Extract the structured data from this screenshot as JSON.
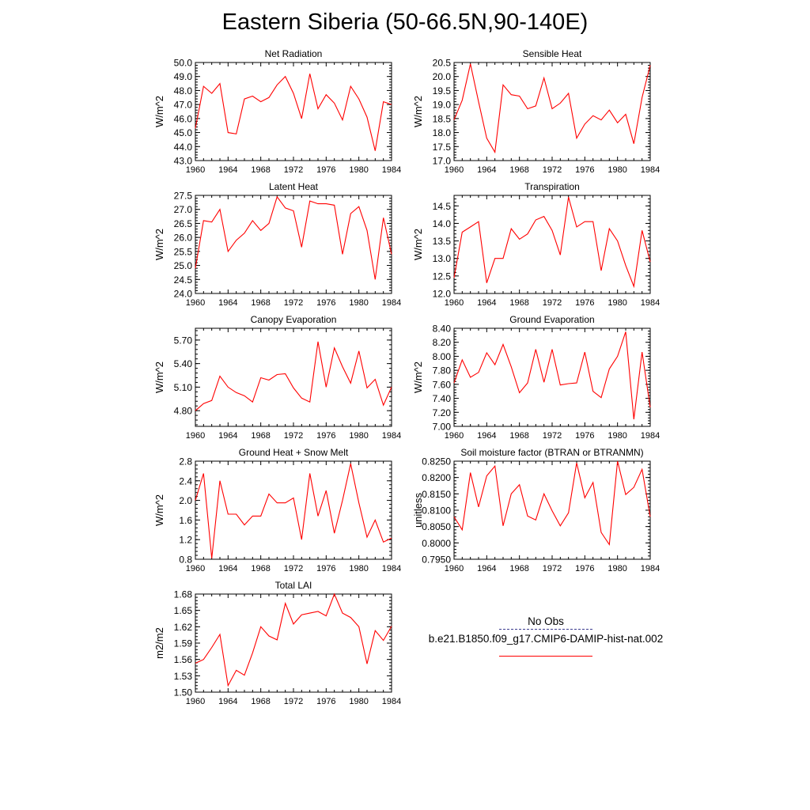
{
  "title": "Eastern Siberia (50-66.5N,90-140E)",
  "legend": {
    "obs_label": "No Obs",
    "obs_color": "#3b3b8f",
    "model_label": "b.e21.B1850.f09_g17.CMIP6-DAMIP-hist-nat.002",
    "model_color": "#ff0000"
  },
  "chart_data": [
    {
      "type": "line",
      "title": "Net Radiation",
      "ylabel": "W/m^2",
      "x": [
        1960,
        1961,
        1962,
        1963,
        1964,
        1965,
        1966,
        1967,
        1968,
        1969,
        1970,
        1971,
        1972,
        1973,
        1974,
        1975,
        1976,
        1977,
        1978,
        1979,
        1980,
        1981,
        1982,
        1983,
        1984
      ],
      "xticks": [
        1960,
        1964,
        1968,
        1972,
        1976,
        1980,
        1984
      ],
      "xlim": [
        1960,
        1984
      ],
      "ylim": [
        43.0,
        50.0
      ],
      "yticks": [
        43.0,
        44.0,
        45.0,
        46.0,
        47.0,
        48.0,
        49.0,
        50.0
      ],
      "ydecimals": 1,
      "series": [
        {
          "values": [
            45.3,
            48.3,
            47.8,
            48.5,
            45.0,
            44.9,
            47.4,
            47.6,
            47.2,
            47.5,
            48.4,
            49.0,
            47.8,
            46.0,
            49.2,
            46.7,
            47.7,
            47.1,
            45.9,
            48.3,
            47.4,
            46.1,
            43.7,
            47.2,
            47.0
          ],
          "color": "#ff0000"
        }
      ]
    },
    {
      "type": "line",
      "title": "Sensible Heat",
      "ylabel": "W/m^2",
      "x": [
        1960,
        1961,
        1962,
        1963,
        1964,
        1965,
        1966,
        1967,
        1968,
        1969,
        1970,
        1971,
        1972,
        1973,
        1974,
        1975,
        1976,
        1977,
        1978,
        1979,
        1980,
        1981,
        1982,
        1983,
        1984
      ],
      "xticks": [
        1960,
        1964,
        1968,
        1972,
        1976,
        1980,
        1984
      ],
      "xlim": [
        1960,
        1984
      ],
      "ylim": [
        17.0,
        20.5
      ],
      "yticks": [
        17.0,
        17.5,
        18.0,
        18.5,
        19.0,
        19.5,
        20.0,
        20.5
      ],
      "ydecimals": 1,
      "series": [
        {
          "values": [
            18.45,
            19.15,
            20.45,
            19.1,
            17.8,
            17.3,
            19.7,
            19.35,
            19.3,
            18.85,
            18.95,
            19.95,
            18.85,
            19.05,
            19.4,
            17.8,
            18.3,
            18.6,
            18.45,
            18.8,
            18.35,
            18.65,
            17.6,
            19.25,
            20.4
          ],
          "color": "#ff0000"
        }
      ]
    },
    {
      "type": "line",
      "title": "Latent Heat",
      "ylabel": "W/m^2",
      "x": [
        1960,
        1961,
        1962,
        1963,
        1964,
        1965,
        1966,
        1967,
        1968,
        1969,
        1970,
        1971,
        1972,
        1973,
        1974,
        1975,
        1976,
        1977,
        1978,
        1979,
        1980,
        1981,
        1982,
        1983,
        1984
      ],
      "xticks": [
        1960,
        1964,
        1968,
        1972,
        1976,
        1980,
        1984
      ],
      "xlim": [
        1960,
        1984
      ],
      "ylim": [
        24.0,
        27.5
      ],
      "yticks": [
        24.0,
        24.5,
        25.0,
        25.5,
        26.0,
        26.5,
        27.0,
        27.5
      ],
      "ydecimals": 1,
      "series": [
        {
          "values": [
            24.9,
            26.6,
            26.55,
            27.0,
            25.5,
            25.9,
            26.15,
            26.6,
            26.25,
            26.5,
            27.45,
            27.05,
            26.95,
            25.65,
            27.3,
            27.2,
            27.2,
            27.15,
            25.4,
            26.85,
            27.1,
            26.25,
            24.5,
            26.7,
            25.4
          ],
          "color": "#ff0000"
        }
      ]
    },
    {
      "type": "line",
      "title": "Transpiration",
      "ylabel": "W/m^2",
      "x": [
        1960,
        1961,
        1962,
        1963,
        1964,
        1965,
        1966,
        1967,
        1968,
        1969,
        1970,
        1971,
        1972,
        1973,
        1974,
        1975,
        1976,
        1977,
        1978,
        1979,
        1980,
        1981,
        1982,
        1983,
        1984
      ],
      "xticks": [
        1960,
        1964,
        1968,
        1972,
        1976,
        1980,
        1984
      ],
      "xlim": [
        1960,
        1984
      ],
      "ylim": [
        12.0,
        14.8
      ],
      "yticks": [
        12.0,
        12.5,
        13.0,
        13.5,
        14.0,
        14.5
      ],
      "ydecimals": 1,
      "series": [
        {
          "values": [
            12.45,
            13.75,
            13.9,
            14.05,
            12.3,
            13.0,
            13.0,
            13.85,
            13.55,
            13.7,
            14.1,
            14.2,
            13.8,
            13.1,
            14.75,
            13.9,
            14.05,
            14.05,
            12.65,
            13.85,
            13.5,
            12.8,
            12.2,
            13.8,
            12.9
          ],
          "color": "#ff0000"
        }
      ]
    },
    {
      "type": "line",
      "title": "Canopy Evaporation",
      "ylabel": "W/m^2",
      "x": [
        1960,
        1961,
        1962,
        1963,
        1964,
        1965,
        1966,
        1967,
        1968,
        1969,
        1970,
        1971,
        1972,
        1973,
        1974,
        1975,
        1976,
        1977,
        1978,
        1979,
        1980,
        1981,
        1982,
        1983,
        1984
      ],
      "xticks": [
        1960,
        1964,
        1968,
        1972,
        1976,
        1980,
        1984
      ],
      "xlim": [
        1960,
        1984
      ],
      "ylim": [
        4.6,
        5.85
      ],
      "yticks": [
        4.8,
        5.1,
        5.4,
        5.7
      ],
      "ydecimals": 2,
      "series": [
        {
          "values": [
            4.8,
            4.89,
            4.93,
            5.24,
            5.1,
            5.03,
            4.99,
            4.91,
            5.22,
            5.19,
            5.26,
            5.27,
            5.09,
            4.96,
            4.91,
            5.68,
            5.1,
            5.6,
            5.36,
            5.15,
            5.56,
            5.09,
            5.2,
            4.87,
            5.1
          ],
          "color": "#ff0000"
        }
      ]
    },
    {
      "type": "line",
      "title": "Ground Evaporation",
      "ylabel": "W/m^2",
      "x": [
        1960,
        1961,
        1962,
        1963,
        1964,
        1965,
        1966,
        1967,
        1968,
        1969,
        1970,
        1971,
        1972,
        1973,
        1974,
        1975,
        1976,
        1977,
        1978,
        1979,
        1980,
        1981,
        1982,
        1983,
        1984
      ],
      "xticks": [
        1960,
        1964,
        1968,
        1972,
        1976,
        1980,
        1984
      ],
      "xlim": [
        1960,
        1984
      ],
      "ylim": [
        7.0,
        8.4
      ],
      "yticks": [
        7.0,
        7.2,
        7.4,
        7.6,
        7.8,
        8.0,
        8.2,
        8.4
      ],
      "ydecimals": 2,
      "series": [
        {
          "values": [
            7.62,
            7.95,
            7.7,
            7.77,
            8.05,
            7.88,
            8.17,
            7.85,
            7.48,
            7.62,
            8.1,
            7.63,
            8.1,
            7.59,
            7.61,
            7.62,
            8.06,
            7.5,
            7.41,
            7.82,
            8.0,
            8.35,
            7.1,
            8.06,
            7.27
          ],
          "color": "#ff0000"
        }
      ]
    },
    {
      "type": "line",
      "title": "Ground Heat + Snow Melt",
      "ylabel": "W/m^2",
      "x": [
        1960,
        1961,
        1962,
        1963,
        1964,
        1965,
        1966,
        1967,
        1968,
        1969,
        1970,
        1971,
        1972,
        1973,
        1974,
        1975,
        1976,
        1977,
        1978,
        1979,
        1980,
        1981,
        1982,
        1983,
        1984
      ],
      "xticks": [
        1960,
        1964,
        1968,
        1972,
        1976,
        1980,
        1984
      ],
      "xlim": [
        1960,
        1984
      ],
      "ylim": [
        0.8,
        2.8
      ],
      "yticks": [
        0.8,
        1.2,
        1.6,
        2.0,
        2.4,
        2.8
      ],
      "ydecimals": 1,
      "series": [
        {
          "values": [
            2.0,
            2.55,
            0.82,
            2.4,
            1.72,
            1.72,
            1.5,
            1.68,
            1.68,
            2.13,
            1.95,
            1.95,
            2.05,
            1.2,
            2.55,
            1.68,
            2.2,
            1.33,
            2.0,
            2.75,
            1.95,
            1.25,
            1.6,
            1.15,
            1.23
          ],
          "color": "#ff0000"
        }
      ]
    },
    {
      "type": "line",
      "title": "Soil moisture factor (BTRAN or BTRANMN)",
      "ylabel": "unitless",
      "x": [
        1960,
        1961,
        1962,
        1963,
        1964,
        1965,
        1966,
        1967,
        1968,
        1969,
        1970,
        1971,
        1972,
        1973,
        1974,
        1975,
        1976,
        1977,
        1978,
        1979,
        1980,
        1981,
        1982,
        1983,
        1984
      ],
      "xticks": [
        1960,
        1964,
        1968,
        1972,
        1976,
        1980,
        1984
      ],
      "xlim": [
        1960,
        1984
      ],
      "ylim": [
        0.795,
        0.825
      ],
      "yticks": [
        0.795,
        0.8,
        0.805,
        0.81,
        0.815,
        0.82,
        0.825
      ],
      "ydecimals": 4,
      "series": [
        {
          "values": [
            0.808,
            0.804,
            0.8215,
            0.811,
            0.8205,
            0.8235,
            0.8052,
            0.815,
            0.8178,
            0.8082,
            0.807,
            0.815,
            0.8098,
            0.8052,
            0.8092,
            0.8245,
            0.8138,
            0.8185,
            0.8032,
            0.7995,
            0.825,
            0.8148,
            0.817,
            0.8225,
            0.808
          ],
          "color": "#ff0000"
        }
      ]
    },
    {
      "type": "line",
      "title": "Total LAI",
      "ylabel": "m2/m2",
      "x": [
        1960,
        1961,
        1962,
        1963,
        1964,
        1965,
        1966,
        1967,
        1968,
        1969,
        1970,
        1971,
        1972,
        1973,
        1974,
        1975,
        1976,
        1977,
        1978,
        1979,
        1980,
        1981,
        1982,
        1983,
        1984
      ],
      "xticks": [
        1960,
        1964,
        1968,
        1972,
        1976,
        1980,
        1984
      ],
      "xlim": [
        1960,
        1984
      ],
      "ylim": [
        1.5,
        1.68
      ],
      "yticks": [
        1.5,
        1.53,
        1.56,
        1.59,
        1.62,
        1.65,
        1.68
      ],
      "ydecimals": 2,
      "series": [
        {
          "values": [
            1.553,
            1.56,
            1.582,
            1.606,
            1.512,
            1.54,
            1.531,
            1.572,
            1.62,
            1.603,
            1.596,
            1.663,
            1.625,
            1.642,
            1.645,
            1.648,
            1.64,
            1.68,
            1.645,
            1.637,
            1.62,
            1.552,
            1.613,
            1.595,
            1.621
          ],
          "color": "#ff0000"
        }
      ]
    }
  ]
}
